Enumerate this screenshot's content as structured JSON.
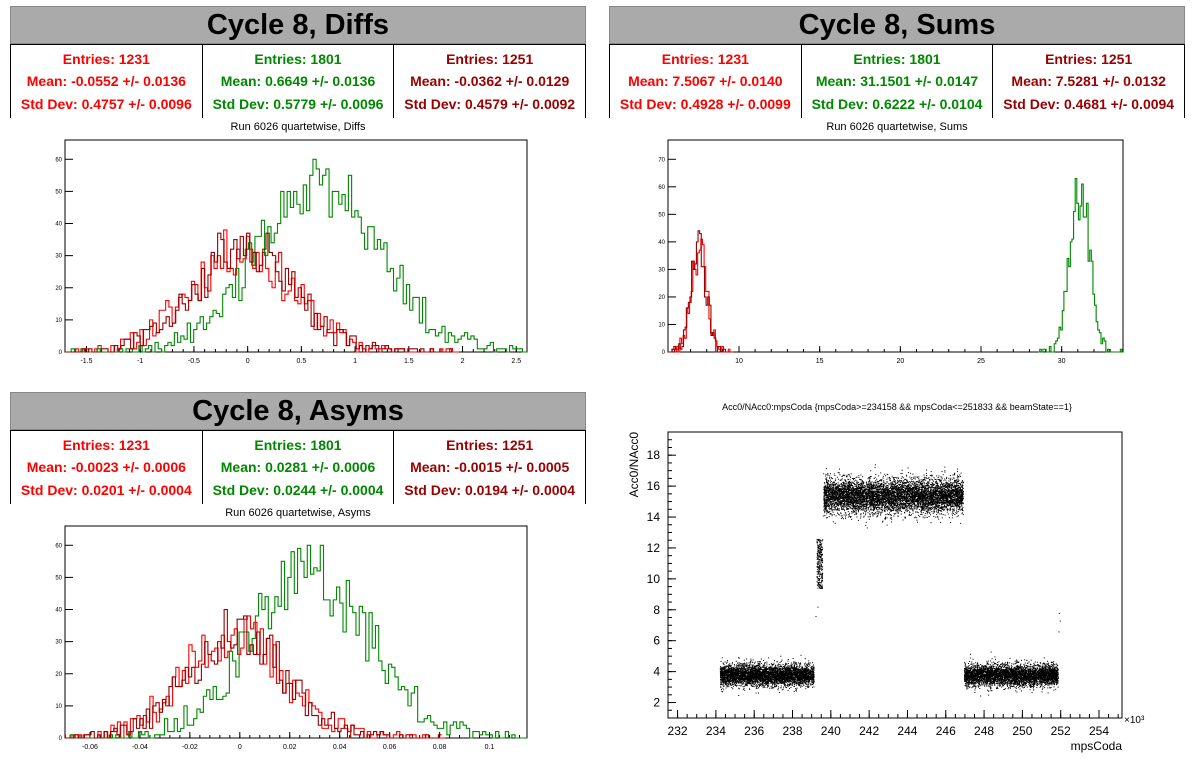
{
  "colors": {
    "red": "#ff0000",
    "green": "#008800",
    "darkred": "#990000",
    "black": "#000000"
  },
  "panels": {
    "diffs": {
      "title": "Cycle 8, Diffs",
      "subtitle": "Run 6026 quartetwise, Diffs",
      "stats": [
        {
          "entries": "Entries: 1231",
          "mean": "Mean: -0.0552 +/- 0.0136",
          "std": "Std Dev: 0.4757 +/- 0.0096"
        },
        {
          "entries": "Entries: 1801",
          "mean": "Mean: 0.6649 +/- 0.0136",
          "std": "Std Dev: 0.5779 +/- 0.0096"
        },
        {
          "entries": "Entries: 1251",
          "mean": "Mean: -0.0362 +/- 0.0129",
          "std": "Std Dev: 0.4579 +/- 0.0092"
        }
      ]
    },
    "sums": {
      "title": "Cycle 8, Sums",
      "subtitle": "Run 6026 quartetwise, Sums",
      "stats": [
        {
          "entries": "Entries: 1231",
          "mean": "Mean: 7.5067 +/- 0.0140",
          "std": "Std Dev: 0.4928 +/- 0.0099"
        },
        {
          "entries": "Entries: 1801",
          "mean": "Mean: 31.1501 +/- 0.0147",
          "std": "Std Dev: 0.6222 +/- 0.0104"
        },
        {
          "entries": "Entries: 1251",
          "mean": "Mean: 7.5281 +/- 0.0132",
          "std": "Std Dev: 0.4681 +/- 0.0094"
        }
      ]
    },
    "asyms": {
      "title": "Cycle 8, Asyms",
      "subtitle": "Run 6026 quartetwise, Asyms",
      "stats": [
        {
          "entries": "Entries: 1231",
          "mean": "Mean: -0.0023 +/- 0.0006",
          "std": "Std Dev: 0.0201 +/- 0.0004"
        },
        {
          "entries": "Entries: 1801",
          "mean": "Mean: 0.0281 +/- 0.0006",
          "std": "Std Dev: 0.0244 +/- 0.0004"
        },
        {
          "entries": "Entries: 1251",
          "mean": "Mean: -0.0015 +/- 0.0005",
          "std": "Std Dev: 0.0194 +/- 0.0004"
        }
      ]
    },
    "scatter": {
      "title": "Acc0/NAcc0:mpsCoda {mpsCoda>=234158 && mpsCoda<=251833 && beamState==1}",
      "xlabel": "mpsCoda",
      "ylabel": "Acc0/NAcc0",
      "xexp": "×10³"
    }
  },
  "chart_data": [
    {
      "type": "histogram",
      "name": "diffs",
      "xlim": [
        -1.7,
        2.6
      ],
      "ylim": [
        0,
        66
      ],
      "xticks": [
        -1.5,
        -1,
        -0.5,
        0,
        0.5,
        1,
        1.5,
        2,
        2.5
      ],
      "xticklabels": [
        "-1.5",
        "-1",
        "-0.5",
        "0",
        "0.5",
        "1",
        "1.5",
        "2",
        "2.5"
      ],
      "yticks": [
        0,
        10,
        20,
        30,
        40,
        50,
        60
      ],
      "series": [
        {
          "color": "#ff0000",
          "mean": -0.0552,
          "std": 0.4757,
          "peak": 41,
          "binwidth": 0.03
        },
        {
          "color": "#008800",
          "mean": 0.6649,
          "std": 0.5779,
          "peak": 65,
          "binwidth": 0.03
        },
        {
          "color": "#990000",
          "mean": -0.0362,
          "std": 0.4579,
          "peak": 42,
          "binwidth": 0.03
        }
      ]
    },
    {
      "type": "histogram",
      "name": "sums",
      "xlim": [
        5.6,
        33.8
      ],
      "ylim": [
        0,
        77
      ],
      "xticks": [
        10,
        15,
        20,
        25,
        30
      ],
      "xticklabels": [
        "10",
        "15",
        "20",
        "25",
        "30"
      ],
      "yticks": [
        0,
        10,
        20,
        30,
        40,
        50,
        60,
        70
      ],
      "series": [
        {
          "color": "#ff0000",
          "mean": 7.5067,
          "std": 0.4928,
          "peak": 48,
          "binwidth": 0.1
        },
        {
          "color": "#008800",
          "mean": 31.1501,
          "std": 0.6222,
          "peak": 74,
          "binwidth": 0.1
        },
        {
          "color": "#990000",
          "mean": 7.5281,
          "std": 0.4681,
          "peak": 49,
          "binwidth": 0.1
        }
      ]
    },
    {
      "type": "histogram",
      "name": "asyms",
      "xlim": [
        -0.07,
        0.115
      ],
      "ylim": [
        0,
        66
      ],
      "xticks": [
        -0.06,
        -0.04,
        -0.02,
        0,
        0.02,
        0.04,
        0.06,
        0.08,
        0.1
      ],
      "xticklabels": [
        "-0.06",
        "-0.04",
        "-0.02",
        "0",
        "0.02",
        "0.04",
        "0.06",
        "0.08",
        "0.1"
      ],
      "yticks": [
        0,
        10,
        20,
        30,
        40,
        50,
        60
      ],
      "series": [
        {
          "color": "#ff0000",
          "mean": -0.0023,
          "std": 0.0201,
          "peak": 41,
          "binwidth": 0.0013
        },
        {
          "color": "#008800",
          "mean": 0.0281,
          "std": 0.0244,
          "peak": 65,
          "binwidth": 0.0013
        },
        {
          "color": "#990000",
          "mean": -0.0015,
          "std": 0.0194,
          "peak": 42,
          "binwidth": 0.0013
        }
      ]
    },
    {
      "type": "scatter",
      "name": "acc0",
      "xlim": [
        231.5,
        255.2
      ],
      "ylim": [
        1,
        19.5
      ],
      "xticks": [
        232,
        234,
        236,
        238,
        240,
        242,
        244,
        246,
        248,
        250,
        252,
        254
      ],
      "xticklabels": [
        "232",
        "234",
        "236",
        "238",
        "240",
        "242",
        "244",
        "246",
        "248",
        "250",
        "252",
        "254"
      ],
      "yticks": [
        2,
        4,
        6,
        8,
        10,
        12,
        14,
        16,
        18
      ],
      "clusters": [
        {
          "x": [
            234.2,
            239.1
          ],
          "y_mean": 3.8,
          "y_sd": 0.35
        },
        {
          "x": [
            239.25,
            239.55
          ],
          "y_mean": 11.0,
          "y_sd": 0.6
        },
        {
          "x": [
            239.6,
            246.9
          ],
          "y_mean": 15.4,
          "y_sd": 0.55
        },
        {
          "x": [
            246.95,
            251.85
          ],
          "y_mean": 3.8,
          "y_sd": 0.35
        }
      ]
    }
  ]
}
